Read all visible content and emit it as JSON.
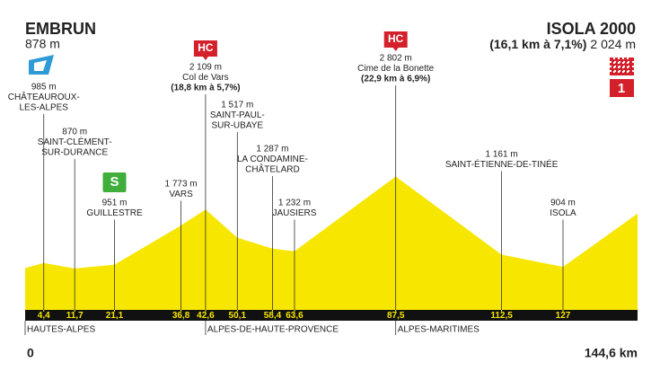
{
  "chart_data": {
    "type": "area",
    "color": "#f7e600",
    "start": {
      "name": "EMBRUN",
      "elevation_label": "878 m"
    },
    "finish": {
      "name": "ISOLA 2000",
      "climb": "(16,1 km à 7,1%)",
      "elevation_label": "2 024 m"
    },
    "x": [
      0,
      4.4,
      11.7,
      21.1,
      36.8,
      42.6,
      50.1,
      58.4,
      63.6,
      87.5,
      112.5,
      127,
      144.6
    ],
    "values": [
      878,
      985,
      870,
      951,
      1773,
      2109,
      1517,
      1287,
      1232,
      2802,
      1161,
      904,
      2024
    ],
    "value_labels": [
      null,
      "985 m",
      "870 m",
      "951 m",
      "1 773 m",
      "2 109 m",
      "1 517 m",
      "1 287 m",
      "1 232 m",
      "2 802 m",
      "1 161 m",
      "904 m",
      null
    ],
    "point_names": [
      null,
      [
        "CHÂTEAUROUX-",
        "LES-ALPES"
      ],
      [
        "SAINT-CLÉMENT-",
        "SUR-DURANCE"
      ],
      [
        "GUILLESTRE"
      ],
      [
        "VARS"
      ],
      [
        "Col de Vars"
      ],
      [
        "SAINT-PAUL-",
        "SUR-UBAYE"
      ],
      [
        "LA CONDAMINE-",
        "CHÂTELARD"
      ],
      [
        "JAUSIERS"
      ],
      [
        "Cime de la Bonette"
      ],
      [
        "SAINT-ÉTIENNE-DE-TINÉE"
      ],
      [
        "ISOLA"
      ],
      null
    ],
    "climb_details": [
      null,
      null,
      null,
      null,
      null,
      "(18,8 km à 5,7%)",
      null,
      null,
      null,
      "(22,9 km à 6,9%)",
      null,
      null,
      null
    ],
    "badges": [
      null,
      null,
      null,
      "S",
      null,
      "HC",
      null,
      null,
      null,
      "HC",
      null,
      null,
      null
    ],
    "xlim": [
      0,
      144.6
    ],
    "xlim_labels": [
      "0",
      "144,6 km"
    ],
    "xticks": [
      {
        "value": 4.4,
        "label": "4,4"
      },
      {
        "value": 11.7,
        "label": "11,7"
      },
      {
        "value": 21.1,
        "label": "21,1"
      },
      {
        "value": 36.8,
        "label": "36,8"
      },
      {
        "value": 42.6,
        "label": "42,6"
      },
      {
        "value": 50.1,
        "label": "50,1"
      },
      {
        "value": 58.4,
        "label": "58,4"
      },
      {
        "value": 63.6,
        "label": "63,6"
      },
      {
        "value": 87.5,
        "label": "87,5"
      },
      {
        "value": 112.5,
        "label": "112,5"
      },
      127
    ],
    "ylim": [
      0,
      4000
    ],
    "regions": [
      "HAUTES-ALPES",
      "ALPES-DE-HAUTE-PROVENCE",
      "ALPES-MARITIMES"
    ],
    "finish_badge": 1
  }
}
